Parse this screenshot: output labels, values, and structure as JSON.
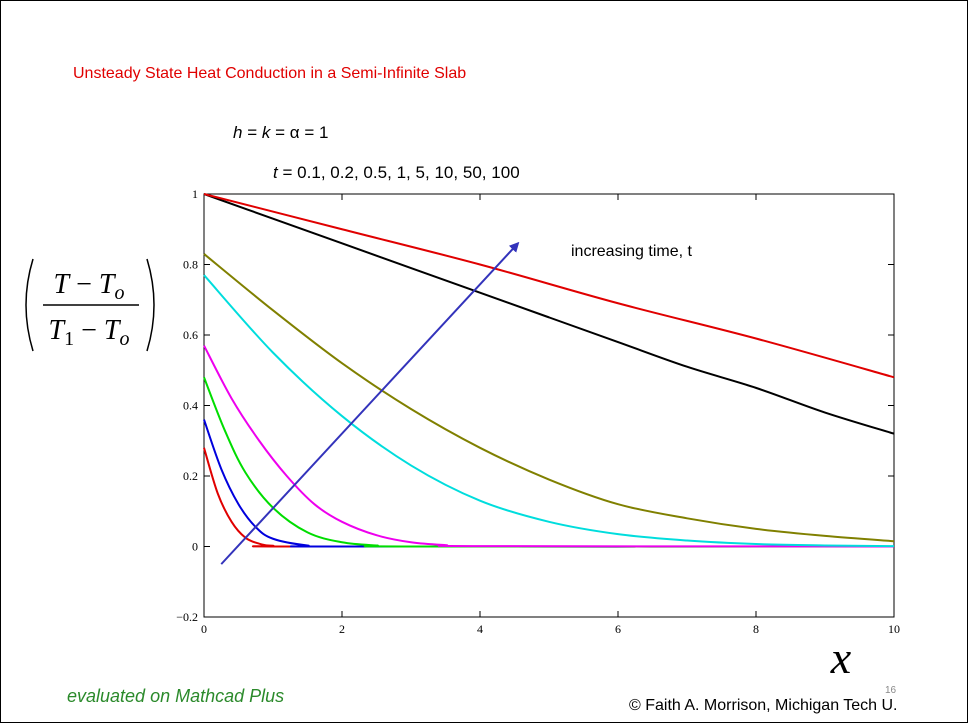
{
  "slide": {
    "title": "Unsteady State Heat Conduction in a Semi-Infinite Slab",
    "params_line1": "h = k = α = 1",
    "params_line2": "t = 0.1, 0.2, 0.5, 1, 5, 10, 50, 100",
    "footer_note": "evaluated on Mathcad Plus",
    "copyright": "© Faith A. Morrison, Michigan Tech U.",
    "slide_number": "16"
  },
  "chart_data": {
    "type": "line",
    "xlabel": "x",
    "ylabel": "(T − To) / (T1 − To)",
    "xlim": [
      0,
      10
    ],
    "ylim": [
      -0.2,
      1
    ],
    "x_ticks": [
      "0",
      "2",
      "4",
      "6",
      "8",
      "10"
    ],
    "y_ticks": [
      "−0.2",
      "0",
      "0.2",
      "0.4",
      "0.6",
      "0.8",
      "1"
    ],
    "grid": false,
    "annotation": {
      "text": "increasing time, t",
      "arrow_from": [
        0.25,
        -0.05
      ],
      "arrow_to": [
        4.55,
        0.86
      ],
      "color": "#3333bb"
    },
    "series": [
      {
        "color": "#e00000",
        "points": [
          [
            0,
            0.28
          ],
          [
            0.2,
            0.15
          ],
          [
            0.4,
            0.07
          ],
          [
            0.6,
            0.025
          ],
          [
            0.8,
            0.008
          ],
          [
            1.0,
            0.002
          ],
          [
            1.5,
            0.0
          ],
          [
            10,
            0.0
          ]
        ]
      },
      {
        "color": "#0000dd",
        "points": [
          [
            0,
            0.36
          ],
          [
            0.25,
            0.22
          ],
          [
            0.5,
            0.12
          ],
          [
            0.75,
            0.055
          ],
          [
            1.0,
            0.022
          ],
          [
            1.5,
            0.003
          ],
          [
            2.0,
            0.0
          ],
          [
            10,
            0.0
          ]
        ]
      },
      {
        "color": "#00dd00",
        "points": [
          [
            0,
            0.48
          ],
          [
            0.3,
            0.33
          ],
          [
            0.6,
            0.21
          ],
          [
            1.0,
            0.11
          ],
          [
            1.5,
            0.04
          ],
          [
            2.0,
            0.012
          ],
          [
            2.5,
            0.003
          ],
          [
            3.0,
            0.0
          ],
          [
            10,
            0.0
          ]
        ]
      },
      {
        "color": "#ee00ee",
        "points": [
          [
            0,
            0.57
          ],
          [
            0.4,
            0.42
          ],
          [
            0.8,
            0.3
          ],
          [
            1.2,
            0.2
          ],
          [
            1.6,
            0.12
          ],
          [
            2.0,
            0.07
          ],
          [
            2.5,
            0.032
          ],
          [
            3.0,
            0.012
          ],
          [
            3.5,
            0.004
          ],
          [
            4.0,
            0.001
          ],
          [
            10,
            0.0
          ]
        ]
      },
      {
        "color": "#00dddd",
        "points": [
          [
            0,
            0.77
          ],
          [
            1,
            0.55
          ],
          [
            2,
            0.37
          ],
          [
            3,
            0.23
          ],
          [
            4,
            0.13
          ],
          [
            5,
            0.07
          ],
          [
            6,
            0.035
          ],
          [
            7,
            0.017
          ],
          [
            8,
            0.007
          ],
          [
            9,
            0.003
          ],
          [
            10,
            0.001
          ]
        ]
      },
      {
        "color": "#808000",
        "points": [
          [
            0,
            0.83
          ],
          [
            1,
            0.67
          ],
          [
            2,
            0.52
          ],
          [
            3,
            0.39
          ],
          [
            4,
            0.28
          ],
          [
            5,
            0.19
          ],
          [
            6,
            0.12
          ],
          [
            7,
            0.08
          ],
          [
            8,
            0.05
          ],
          [
            9,
            0.03
          ],
          [
            10,
            0.015
          ]
        ]
      },
      {
        "color": "#000000",
        "points": [
          [
            0,
            1.0
          ],
          [
            1,
            0.93
          ],
          [
            2,
            0.86
          ],
          [
            3,
            0.79
          ],
          [
            4,
            0.72
          ],
          [
            5,
            0.65
          ],
          [
            6,
            0.58
          ],
          [
            7,
            0.51
          ],
          [
            8,
            0.45
          ],
          [
            9,
            0.38
          ],
          [
            10,
            0.32
          ]
        ]
      },
      {
        "color": "#e00000",
        "points": [
          [
            0,
            1.0
          ],
          [
            2,
            0.9
          ],
          [
            4,
            0.8
          ],
          [
            6,
            0.69
          ],
          [
            8,
            0.59
          ],
          [
            10,
            0.48
          ]
        ]
      }
    ]
  }
}
